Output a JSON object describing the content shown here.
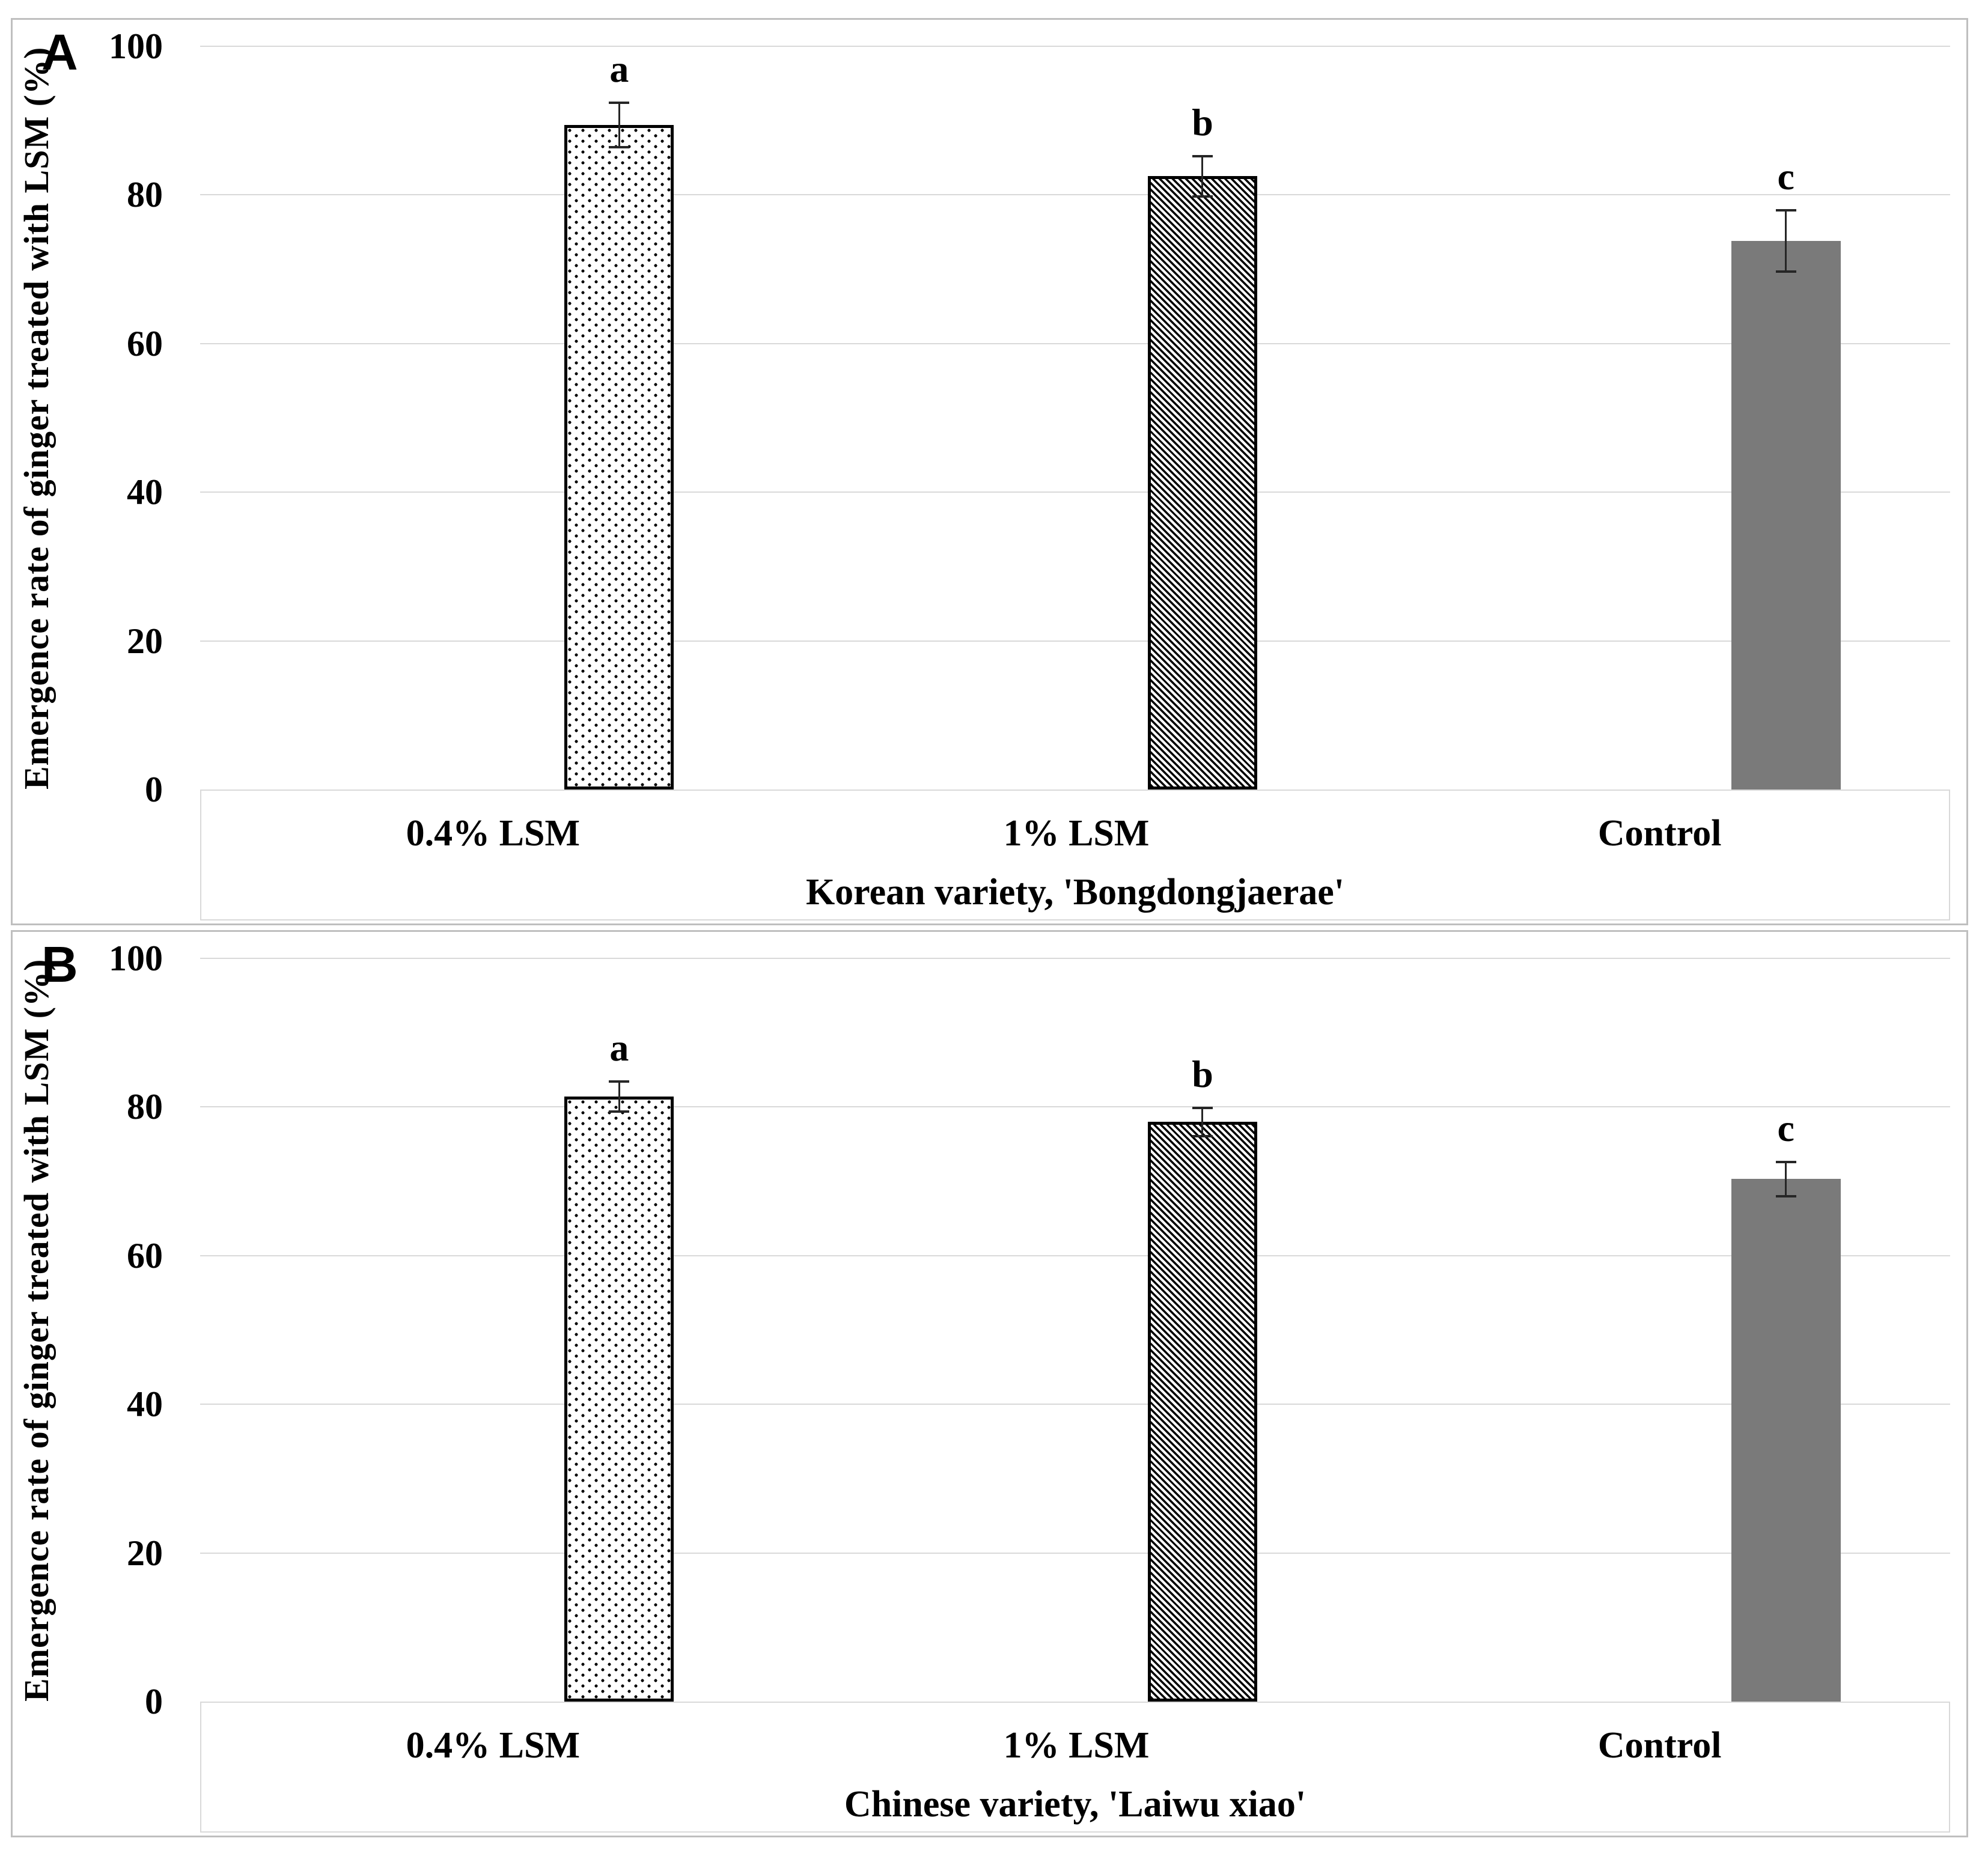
{
  "figure": {
    "background": "#ffffff",
    "panel_border_color": "#bfbfbf",
    "gridline_color": "#d9d9d9",
    "axis_strip_border_color": "#d9d9d9",
    "bar_outline_color": "#000000",
    "solid_bar_color": "#7a7a7a",
    "error_bar_color": "#262626",
    "text_color": "#000000"
  },
  "chart_data": [
    {
      "type": "bar",
      "panel": "A",
      "title": "Korean variety, 'Bongdongjaerae'",
      "ylabel": "Emergence rate of ginger treated with LSM (%)",
      "categories": [
        "0.4% LSM",
        "1% LSM",
        "Control"
      ],
      "values": [
        89.4,
        82.5,
        73.8
      ],
      "error_bars": [
        3.0,
        2.7,
        4.1
      ],
      "sig_letters": [
        "a",
        "b",
        "c"
      ],
      "ylim": [
        0,
        100
      ],
      "y_ticks": [
        100,
        80,
        60,
        40,
        20,
        0
      ],
      "bar_styles": [
        "dotted",
        "diagonal-stripes",
        "solid-gray"
      ],
      "grid": true,
      "legend": "none"
    },
    {
      "type": "bar",
      "panel": "B",
      "title": "Chinese variety, 'Laiwu xiao'",
      "ylabel": "Emergence rate of ginger treated with LSM (%)",
      "categories": [
        "0.4% LSM",
        "1% LSM",
        "Control"
      ],
      "values": [
        81.4,
        78.0,
        70.3
      ],
      "error_bars": [
        2.0,
        1.9,
        2.3
      ],
      "sig_letters": [
        "a",
        "b",
        "c"
      ],
      "ylim": [
        0,
        100
      ],
      "y_ticks": [
        100,
        80,
        60,
        40,
        20,
        0
      ],
      "bar_styles": [
        "dotted",
        "diagonal-stripes",
        "solid-gray"
      ],
      "grid": true,
      "legend": "none"
    }
  ]
}
